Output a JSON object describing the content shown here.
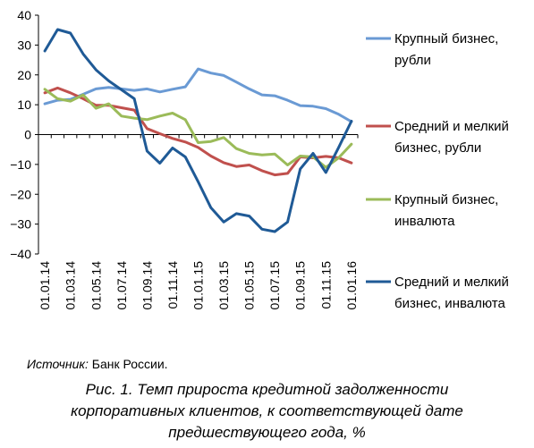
{
  "chart_data": {
    "type": "line",
    "x": [
      "01.01.14",
      "01.02.14",
      "01.03.14",
      "01.04.14",
      "01.05.14",
      "01.06.14",
      "01.07.14",
      "01.08.14",
      "01.09.14",
      "01.10.14",
      "01.11.14",
      "01.12.14",
      "01.01.15",
      "01.02.15",
      "01.03.15",
      "01.04.15",
      "01.05.15",
      "01.06.15",
      "01.07.15",
      "01.08.15",
      "01.09.15",
      "01.10.15",
      "01.11.15",
      "01.12.15",
      "01.01.16"
    ],
    "x_tick_labels": [
      "01.01.14",
      "01.03.14",
      "01.05.14",
      "01.07.14",
      "01.09.14",
      "01.11.14",
      "01.01.15",
      "01.03.15",
      "01.05.15",
      "01.07.15",
      "01.09.15",
      "01.11.15",
      "01.01.16"
    ],
    "y_ticks": [
      "40",
      "30",
      "20",
      "10",
      "0",
      "−10",
      "−20",
      "−30",
      "−40"
    ],
    "ylim": [
      -40,
      40
    ],
    "grid": false,
    "legend_position": "right",
    "series": [
      {
        "name": "Крупный бизнес, рубли",
        "legend_lines": [
          "Крупный бизнес,",
          "рубли"
        ],
        "color": "#6a9ad4",
        "values": [
          10.3,
          11.5,
          11.8,
          13.5,
          15.3,
          15.8,
          15.3,
          14.8,
          15.3,
          14.3,
          15.2,
          16.0,
          22.0,
          20.6,
          19.8,
          17.6,
          15.3,
          13.3,
          13.0,
          11.5,
          9.7,
          9.5,
          8.7,
          6.8,
          4.3
        ]
      },
      {
        "name": "Средний и мелкий бизнес, рубли",
        "legend_lines": [
          "Средний и мелкий",
          "бизнес, рубли"
        ],
        "color": "#c0504d",
        "values": [
          14.0,
          15.6,
          14.0,
          12.0,
          9.8,
          9.8,
          9.0,
          8.2,
          2.0,
          0.3,
          -1.3,
          -2.5,
          -4.3,
          -7.2,
          -9.4,
          -10.7,
          -10.2,
          -12.1,
          -13.5,
          -13.0,
          -7.5,
          -7.8,
          -7.3,
          -7.8,
          -9.5
        ]
      },
      {
        "name": "Крупный бизнес, инвалюта",
        "legend_lines": [
          "Крупный бизнес,",
          "инвалюта"
        ],
        "color": "#9bbb59",
        "values": [
          15.2,
          12.0,
          11.2,
          13.3,
          8.8,
          10.3,
          6.2,
          5.5,
          5.0,
          6.2,
          7.2,
          5.0,
          -2.7,
          -2.3,
          -1.0,
          -4.7,
          -6.3,
          -6.8,
          -6.5,
          -10.2,
          -7.2,
          -7.5,
          -11.0,
          -7.8,
          -3.2
        ]
      },
      {
        "name": "Средний и мелкий бизнес, инвалюта",
        "legend_lines": [
          "Средний и мелкий",
          "бизнес, инвалюта"
        ],
        "color": "#1f5a96",
        "values": [
          28.0,
          35.2,
          34.0,
          27.0,
          21.7,
          18.0,
          15.0,
          12.0,
          -5.5,
          -9.6,
          -4.5,
          -7.5,
          -15.8,
          -24.5,
          -29.3,
          -26.5,
          -27.3,
          -31.7,
          -32.5,
          -29.3,
          -11.5,
          -6.3,
          -12.7,
          -4.3,
          4.5
        ]
      }
    ]
  },
  "source": {
    "label": "Источник:",
    "text": " Банк России."
  },
  "caption": {
    "line1": "Рис. 1. Темп прироста кредитной задолженности",
    "line2": "корпоративных клиентов, к соответствующей дате",
    "line3": "предшествующего года, %"
  }
}
